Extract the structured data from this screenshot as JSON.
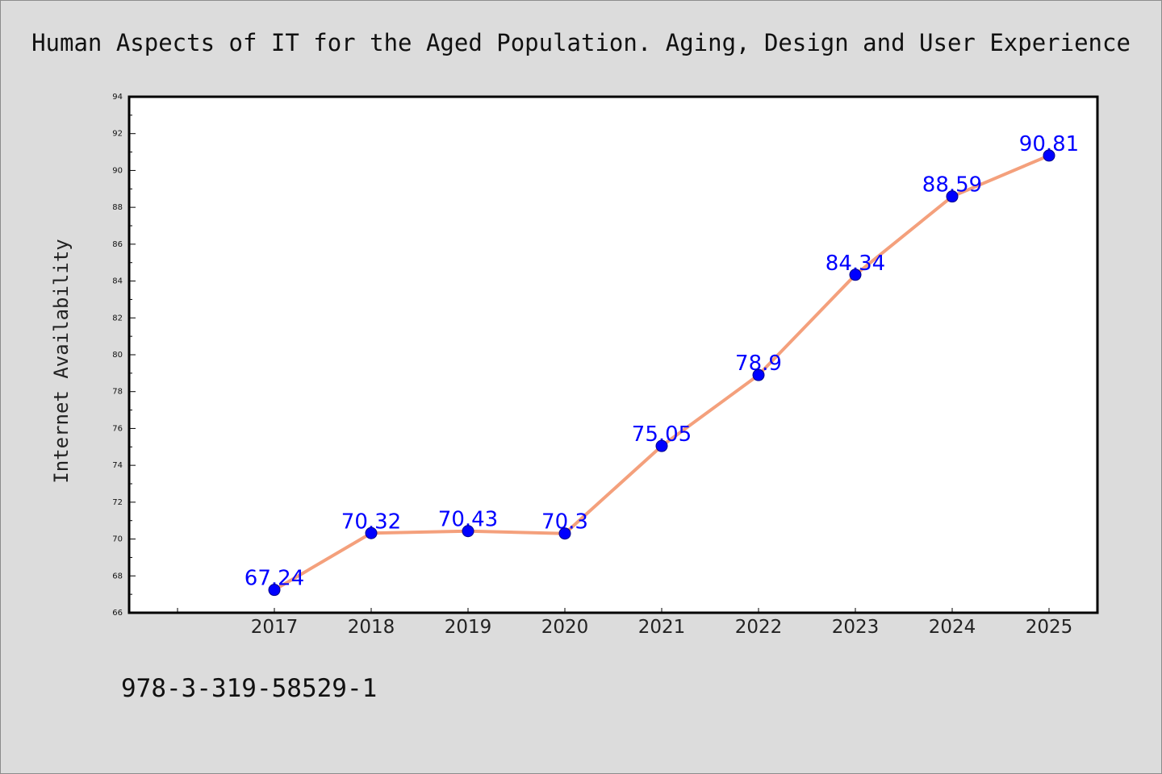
{
  "colors": {
    "background": "#dcdcdc",
    "plot_background": "#ffffff",
    "line": "#f4a07c",
    "marker": "#0000ff",
    "data_label": "#0000ff"
  },
  "footer": {
    "isbn": "978-3-319-58529-1"
  },
  "chart_data": {
    "type": "line",
    "title": "Human Aspects of IT for the Aged Population. Aging, Design and User Experience",
    "xlabel": "",
    "ylabel": "Internet Availability",
    "categories": [
      "2017",
      "2018",
      "2019",
      "2020",
      "2021",
      "2022",
      "2023",
      "2024",
      "2025"
    ],
    "series": [
      {
        "values": [
          67.24,
          70.32,
          70.43,
          70.3,
          75.05,
          78.9,
          84.34,
          88.59,
          90.81
        ],
        "labels": [
          "67.24",
          "70.32",
          "70.43",
          "70.3",
          "75.05",
          "78.9",
          "84.34",
          "88.59",
          "90.81"
        ]
      }
    ],
    "ylim": [
      66,
      94
    ],
    "yticks": [
      66,
      68,
      70,
      72,
      74,
      76,
      78,
      80,
      82,
      84,
      86,
      88,
      90,
      92,
      94
    ],
    "grid": false,
    "legend": "none"
  }
}
